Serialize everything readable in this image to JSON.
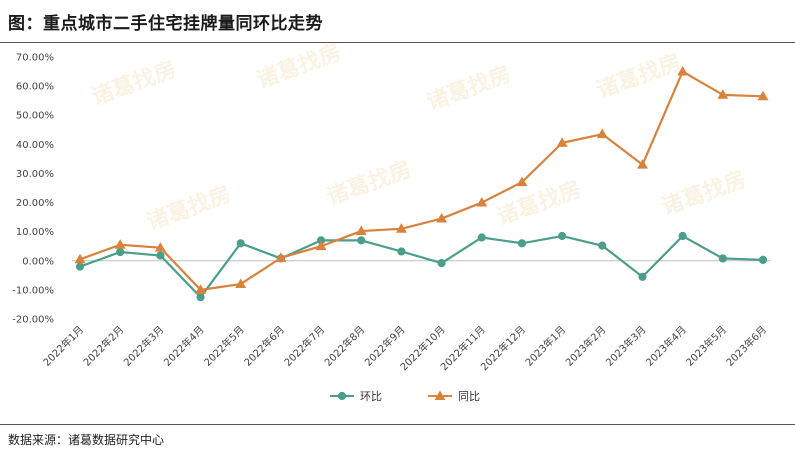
{
  "header": {
    "title": "图：重点城市二手住宅挂牌量同环比走势"
  },
  "footer": {
    "source": "数据来源：诸葛数据研究中心"
  },
  "chart_data": {
    "type": "line",
    "categories": [
      "2022年1月",
      "2022年2月",
      "2022年3月",
      "2022年4月",
      "2022年5月",
      "2022年6月",
      "2022年7月",
      "2022年8月",
      "2022年9月",
      "2022年10月",
      "2022年11月",
      "2022年12月",
      "2023年1月",
      "2023年2月",
      "2023年3月",
      "2023年4月",
      "2023年5月",
      "2023年6月"
    ],
    "yticks": [
      "70.00%",
      "60.00%",
      "50.00%",
      "40.00%",
      "30.00%",
      "20.00%",
      "10.00%",
      "0.00%",
      "-10.00%",
      "-20.00%"
    ],
    "ylim": [
      -20,
      70
    ],
    "series": [
      {
        "name": "环比",
        "color": "#4a9e8a",
        "marker": "circle",
        "values": [
          -2.0,
          3.0,
          1.8,
          -12.5,
          6.0,
          0.8,
          7.0,
          7.0,
          3.2,
          -0.8,
          8.0,
          6.0,
          8.5,
          5.2,
          -5.5,
          8.5,
          0.8,
          0.3
        ]
      },
      {
        "name": "同比",
        "color": "#d9823b",
        "marker": "triangle",
        "values": [
          0.5,
          5.5,
          4.5,
          -10.0,
          -8.0,
          1.0,
          5.0,
          10.2,
          11.0,
          14.5,
          20.0,
          27.0,
          40.5,
          43.5,
          33.0,
          65.0,
          57.0,
          56.5
        ]
      }
    ],
    "legend_position": "bottom-center",
    "grid": false
  }
}
